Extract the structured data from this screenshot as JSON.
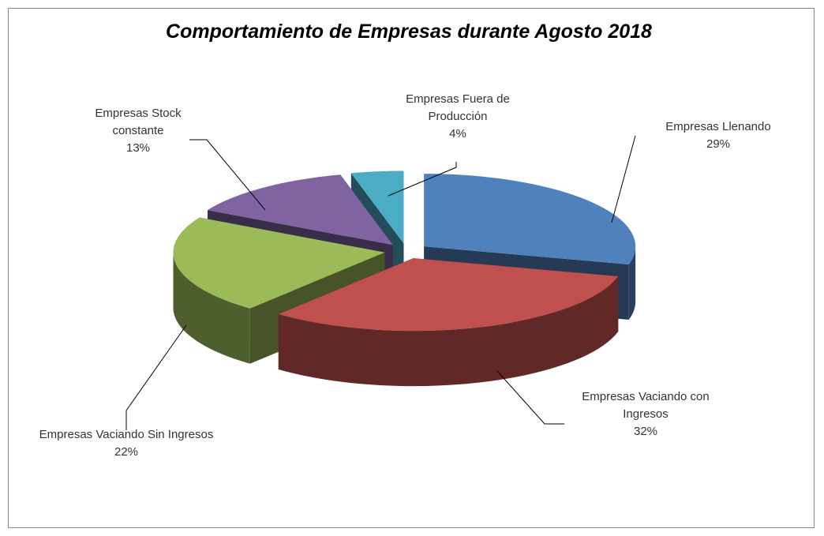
{
  "chart_data": {
    "type": "pie",
    "title": "Comportamiento de Empresas durante Agosto 2018",
    "categories": [
      "Empresas Llenando",
      "Empresas Vaciando con Ingresos",
      "Empresas Vaciando Sin Ingresos",
      "Empresas Stock constante",
      "Empresas Fuera de Producción"
    ],
    "values": [
      29,
      32,
      22,
      13,
      4
    ],
    "value_labels": [
      "29%",
      "32%",
      "22%",
      "13%",
      "4%"
    ],
    "colors": [
      "#4f81bd",
      "#c0504d",
      "#9bbb59",
      "#8064a2",
      "#4bacc6"
    ]
  }
}
